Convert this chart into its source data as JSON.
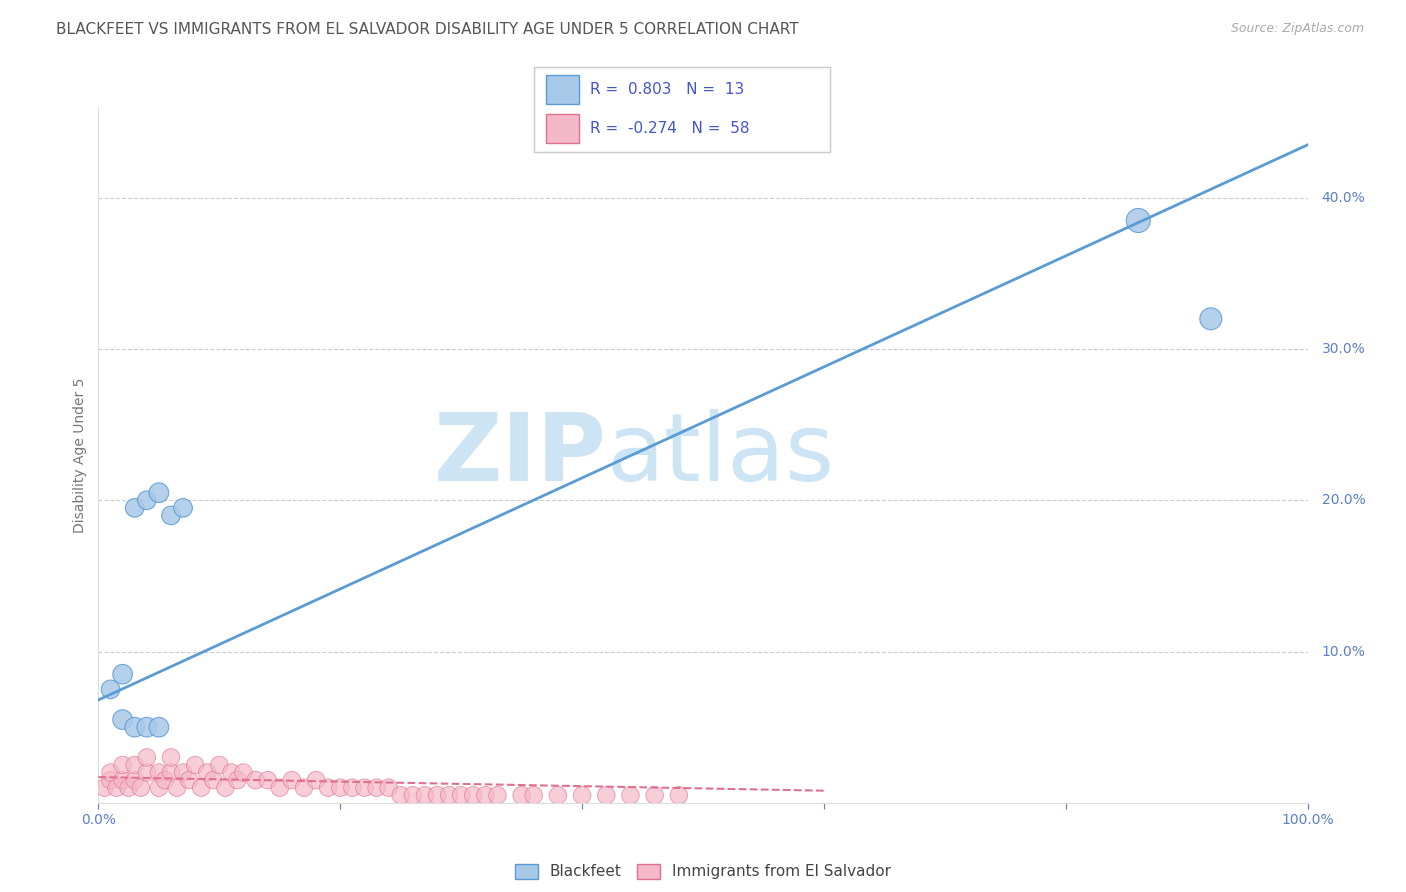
{
  "title": "BLACKFEET VS IMMIGRANTS FROM EL SALVADOR DISABILITY AGE UNDER 5 CORRELATION CHART",
  "source_text": "Source: ZipAtlas.com",
  "ylabel": "Disability Age Under 5",
  "watermark_zip": "ZIP",
  "watermark_atlas": "atlas",
  "xlim": [
    0,
    1.0
  ],
  "ylim": [
    0,
    0.46
  ],
  "y_ticks_right": [
    0.1,
    0.2,
    0.3,
    0.4
  ],
  "y_tick_labels_right": [
    "10.0%",
    "20.0%",
    "30.0%",
    "40.0%"
  ],
  "legend_R1": "0.803",
  "legend_N1": "13",
  "legend_R2": "-0.274",
  "legend_N2": "58",
  "blue_color": "#a8c8e8",
  "blue_edge_color": "#5b9bd5",
  "pink_color": "#f4b8c8",
  "pink_edge_color": "#e07090",
  "line_blue_color": "#5b9bd5",
  "line_pink_color": "#e07090",
  "axis_label_color": "#5b7fc8",
  "legend_text_color": "#4455cc",
  "title_color": "#555555",
  "blue_scatter_x": [
    0.02,
    0.03,
    0.04,
    0.05,
    0.06,
    0.07,
    0.86,
    0.92,
    0.01,
    0.02,
    0.03,
    0.04,
    0.05
  ],
  "blue_scatter_y": [
    0.085,
    0.195,
    0.2,
    0.205,
    0.19,
    0.195,
    0.385,
    0.32,
    0.075,
    0.055,
    0.05,
    0.05,
    0.05
  ],
  "blue_scatter_sizes": [
    200,
    180,
    180,
    200,
    180,
    180,
    300,
    250,
    180,
    200,
    200,
    200,
    200
  ],
  "pink_scatter_x": [
    0.005,
    0.01,
    0.01,
    0.015,
    0.02,
    0.02,
    0.025,
    0.03,
    0.03,
    0.035,
    0.04,
    0.04,
    0.05,
    0.05,
    0.055,
    0.06,
    0.06,
    0.065,
    0.07,
    0.075,
    0.08,
    0.085,
    0.09,
    0.095,
    0.1,
    0.105,
    0.11,
    0.115,
    0.12,
    0.13,
    0.14,
    0.15,
    0.16,
    0.17,
    0.18,
    0.19,
    0.2,
    0.21,
    0.22,
    0.23,
    0.24,
    0.25,
    0.26,
    0.27,
    0.28,
    0.29,
    0.3,
    0.31,
    0.32,
    0.33,
    0.35,
    0.36,
    0.38,
    0.4,
    0.42,
    0.44,
    0.46,
    0.48
  ],
  "pink_scatter_y": [
    0.01,
    0.015,
    0.02,
    0.01,
    0.015,
    0.025,
    0.01,
    0.015,
    0.025,
    0.01,
    0.02,
    0.03,
    0.01,
    0.02,
    0.015,
    0.02,
    0.03,
    0.01,
    0.02,
    0.015,
    0.025,
    0.01,
    0.02,
    0.015,
    0.025,
    0.01,
    0.02,
    0.015,
    0.02,
    0.015,
    0.015,
    0.01,
    0.015,
    0.01,
    0.015,
    0.01,
    0.01,
    0.01,
    0.01,
    0.01,
    0.01,
    0.005,
    0.005,
    0.005,
    0.005,
    0.005,
    0.005,
    0.005,
    0.005,
    0.005,
    0.005,
    0.005,
    0.005,
    0.005,
    0.005,
    0.005,
    0.005,
    0.005
  ],
  "pink_scatter_sizes": [
    160,
    160,
    160,
    160,
    160,
    160,
    160,
    160,
    160,
    160,
    160,
    160,
    160,
    160,
    160,
    160,
    160,
    160,
    160,
    160,
    160,
    160,
    160,
    160,
    160,
    160,
    160,
    160,
    160,
    160,
    160,
    160,
    160,
    160,
    160,
    160,
    160,
    160,
    160,
    160,
    160,
    160,
    160,
    160,
    160,
    160,
    160,
    160,
    160,
    160,
    160,
    160,
    160,
    160,
    160,
    160,
    160,
    160
  ],
  "blue_line_x": [
    0.0,
    1.0
  ],
  "blue_line_y": [
    0.068,
    0.435
  ],
  "pink_line_x": [
    0.0,
    0.6
  ],
  "pink_line_y": [
    0.017,
    0.008
  ],
  "grid_color": "#cccccc",
  "background_color": "#ffffff",
  "watermark_color": "#cce4f4"
}
